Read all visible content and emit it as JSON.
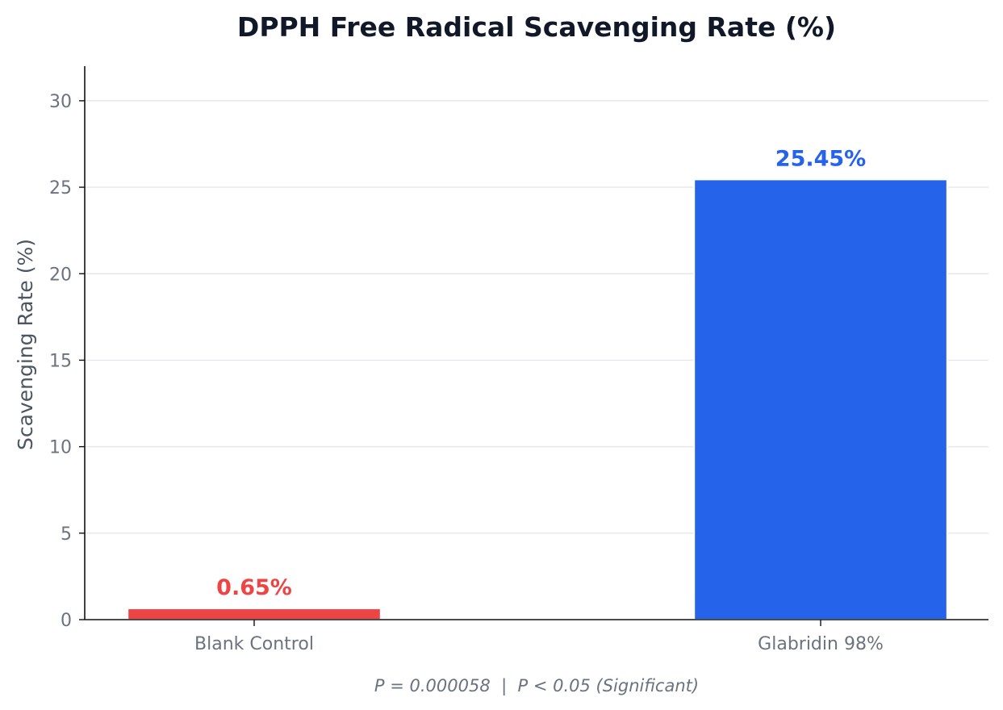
{
  "chart_data": {
    "type": "bar",
    "title": "DPPH Free Radical Scavenging Rate (%)",
    "xlabel": "",
    "ylabel": "Scavenging Rate (%)",
    "categories": [
      "Blank Control",
      "Glabridin 98%"
    ],
    "values": [
      0.65,
      25.45
    ],
    "value_labels": [
      "0.65%",
      "25.45%"
    ],
    "colors": [
      "#ef4444",
      "#2563eb"
    ],
    "ylim": [
      0,
      32
    ],
    "yticks": [
      0,
      5,
      10,
      15,
      20,
      25,
      30
    ],
    "ytick_labels": [
      "0",
      "5",
      "10",
      "15",
      "20",
      "25",
      "30"
    ],
    "grid": true,
    "annotation": "P = 0.000058  |  P < 0.05 (Significant)"
  }
}
